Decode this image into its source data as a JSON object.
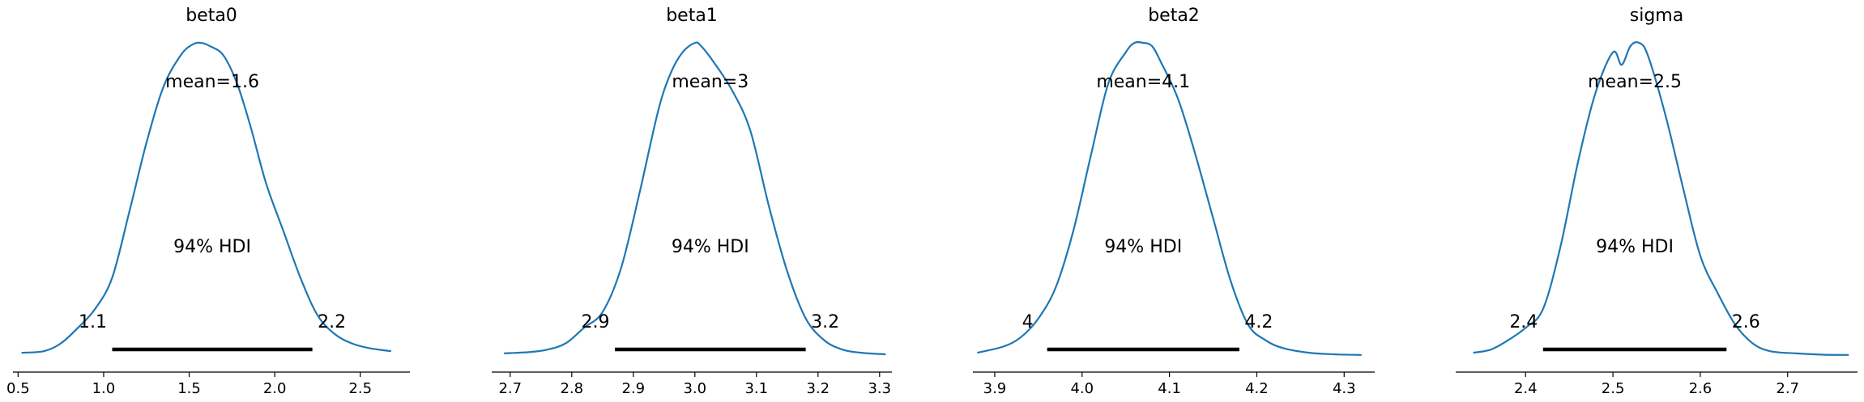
{
  "colors": {
    "density": "#1f77b4",
    "hdi": "#000000"
  },
  "chart_data": [
    {
      "type": "line",
      "title": "beta0",
      "xlim": [
        0.47,
        2.79
      ],
      "xticks": [
        "0.5",
        "1.0",
        "1.5",
        "2.0",
        "2.5"
      ],
      "xtick_values": [
        0.5,
        1.0,
        1.5,
        2.0,
        2.5
      ],
      "mean_label": "mean=1.6",
      "hdi_label": "94% HDI",
      "hdi_prob": 0.94,
      "hdi": [
        1.05,
        2.22
      ],
      "hdi_labels": [
        "1.1",
        "2.2"
      ],
      "density": {
        "x": [
          0.52,
          0.65,
          0.75,
          0.85,
          0.95,
          1.05,
          1.15,
          1.25,
          1.35,
          1.45,
          1.52,
          1.57,
          1.62,
          1.7,
          1.78,
          1.86,
          1.95,
          2.05,
          2.15,
          2.25,
          2.35,
          2.45,
          2.55,
          2.68
        ],
        "y": [
          0.01,
          0.015,
          0.04,
          0.09,
          0.15,
          0.25,
          0.46,
          0.68,
          0.86,
          0.96,
          0.995,
          1.0,
          0.99,
          0.96,
          0.87,
          0.73,
          0.55,
          0.4,
          0.25,
          0.13,
          0.07,
          0.04,
          0.025,
          0.015
        ]
      }
    },
    {
      "type": "line",
      "title": "beta1",
      "xlim": [
        2.67,
        3.32
      ],
      "xticks": [
        "2.7",
        "2.8",
        "2.9",
        "3.0",
        "3.1",
        "3.2",
        "3.3"
      ],
      "xtick_values": [
        2.7,
        2.8,
        2.9,
        3.0,
        3.1,
        3.2,
        3.3
      ],
      "mean_label": "mean=3",
      "hdi_label": "94% HDI",
      "hdi_prob": 0.94,
      "hdi": [
        2.87,
        3.18
      ],
      "hdi_labels": [
        "2.9",
        "3.2"
      ],
      "density": {
        "x": [
          2.69,
          2.73,
          2.76,
          2.79,
          2.82,
          2.85,
          2.88,
          2.91,
          2.94,
          2.96,
          2.98,
          3.0,
          3.01,
          3.03,
          3.06,
          3.09,
          3.12,
          3.15,
          3.18,
          3.21,
          3.24,
          3.27,
          3.31
        ],
        "y": [
          0.008,
          0.012,
          0.02,
          0.04,
          0.09,
          0.14,
          0.28,
          0.52,
          0.78,
          0.9,
          0.97,
          1.0,
          0.99,
          0.94,
          0.85,
          0.72,
          0.48,
          0.27,
          0.12,
          0.05,
          0.02,
          0.01,
          0.005
        ]
      }
    },
    {
      "type": "line",
      "title": "beta2",
      "xlim": [
        3.875,
        4.335
      ],
      "xticks": [
        "3.9",
        "4.0",
        "4.1",
        "4.2",
        "4.3"
      ],
      "xtick_values": [
        3.9,
        4.0,
        4.1,
        4.2,
        4.3
      ],
      "mean_label": "mean=4.1",
      "hdi_label": "94% HDI",
      "hdi_prob": 0.94,
      "hdi": [
        3.96,
        4.18
      ],
      "hdi_labels": [
        "4",
        "4.2"
      ],
      "density": {
        "x": [
          3.88,
          3.91,
          3.93,
          3.95,
          3.97,
          3.99,
          4.01,
          4.03,
          4.05,
          4.06,
          4.07,
          4.08,
          4.09,
          4.11,
          4.13,
          4.15,
          4.17,
          4.19,
          4.21,
          4.23,
          4.26,
          4.29,
          4.32
        ],
        "y": [
          0.01,
          0.03,
          0.06,
          0.12,
          0.22,
          0.4,
          0.64,
          0.87,
          0.97,
          1.0,
          1.0,
          0.99,
          0.94,
          0.82,
          0.64,
          0.44,
          0.24,
          0.1,
          0.05,
          0.025,
          0.01,
          0.005,
          0.003
        ]
      }
    },
    {
      "type": "line",
      "title": "sigma",
      "xlim": [
        2.32,
        2.78
      ],
      "xticks": [
        "2.4",
        "2.5",
        "2.6",
        "2.7"
      ],
      "xtick_values": [
        2.4,
        2.5,
        2.6,
        2.7
      ],
      "mean_label": "mean=2.5",
      "hdi_label": "94% HDI",
      "hdi_prob": 0.94,
      "hdi": [
        2.42,
        2.63
      ],
      "hdi_labels": [
        "2.4",
        "2.6"
      ],
      "density": {
        "x": [
          2.34,
          2.36,
          2.38,
          2.4,
          2.42,
          2.44,
          2.46,
          2.48,
          2.5,
          2.51,
          2.52,
          2.53,
          2.54,
          2.56,
          2.58,
          2.6,
          2.62,
          2.64,
          2.66,
          2.68,
          2.71,
          2.74,
          2.77
        ],
        "y": [
          0.01,
          0.02,
          0.05,
          0.09,
          0.15,
          0.35,
          0.62,
          0.84,
          0.97,
          0.93,
          0.99,
          1.0,
          0.96,
          0.77,
          0.54,
          0.32,
          0.2,
          0.1,
          0.04,
          0.015,
          0.008,
          0.004,
          0.003
        ]
      }
    }
  ]
}
